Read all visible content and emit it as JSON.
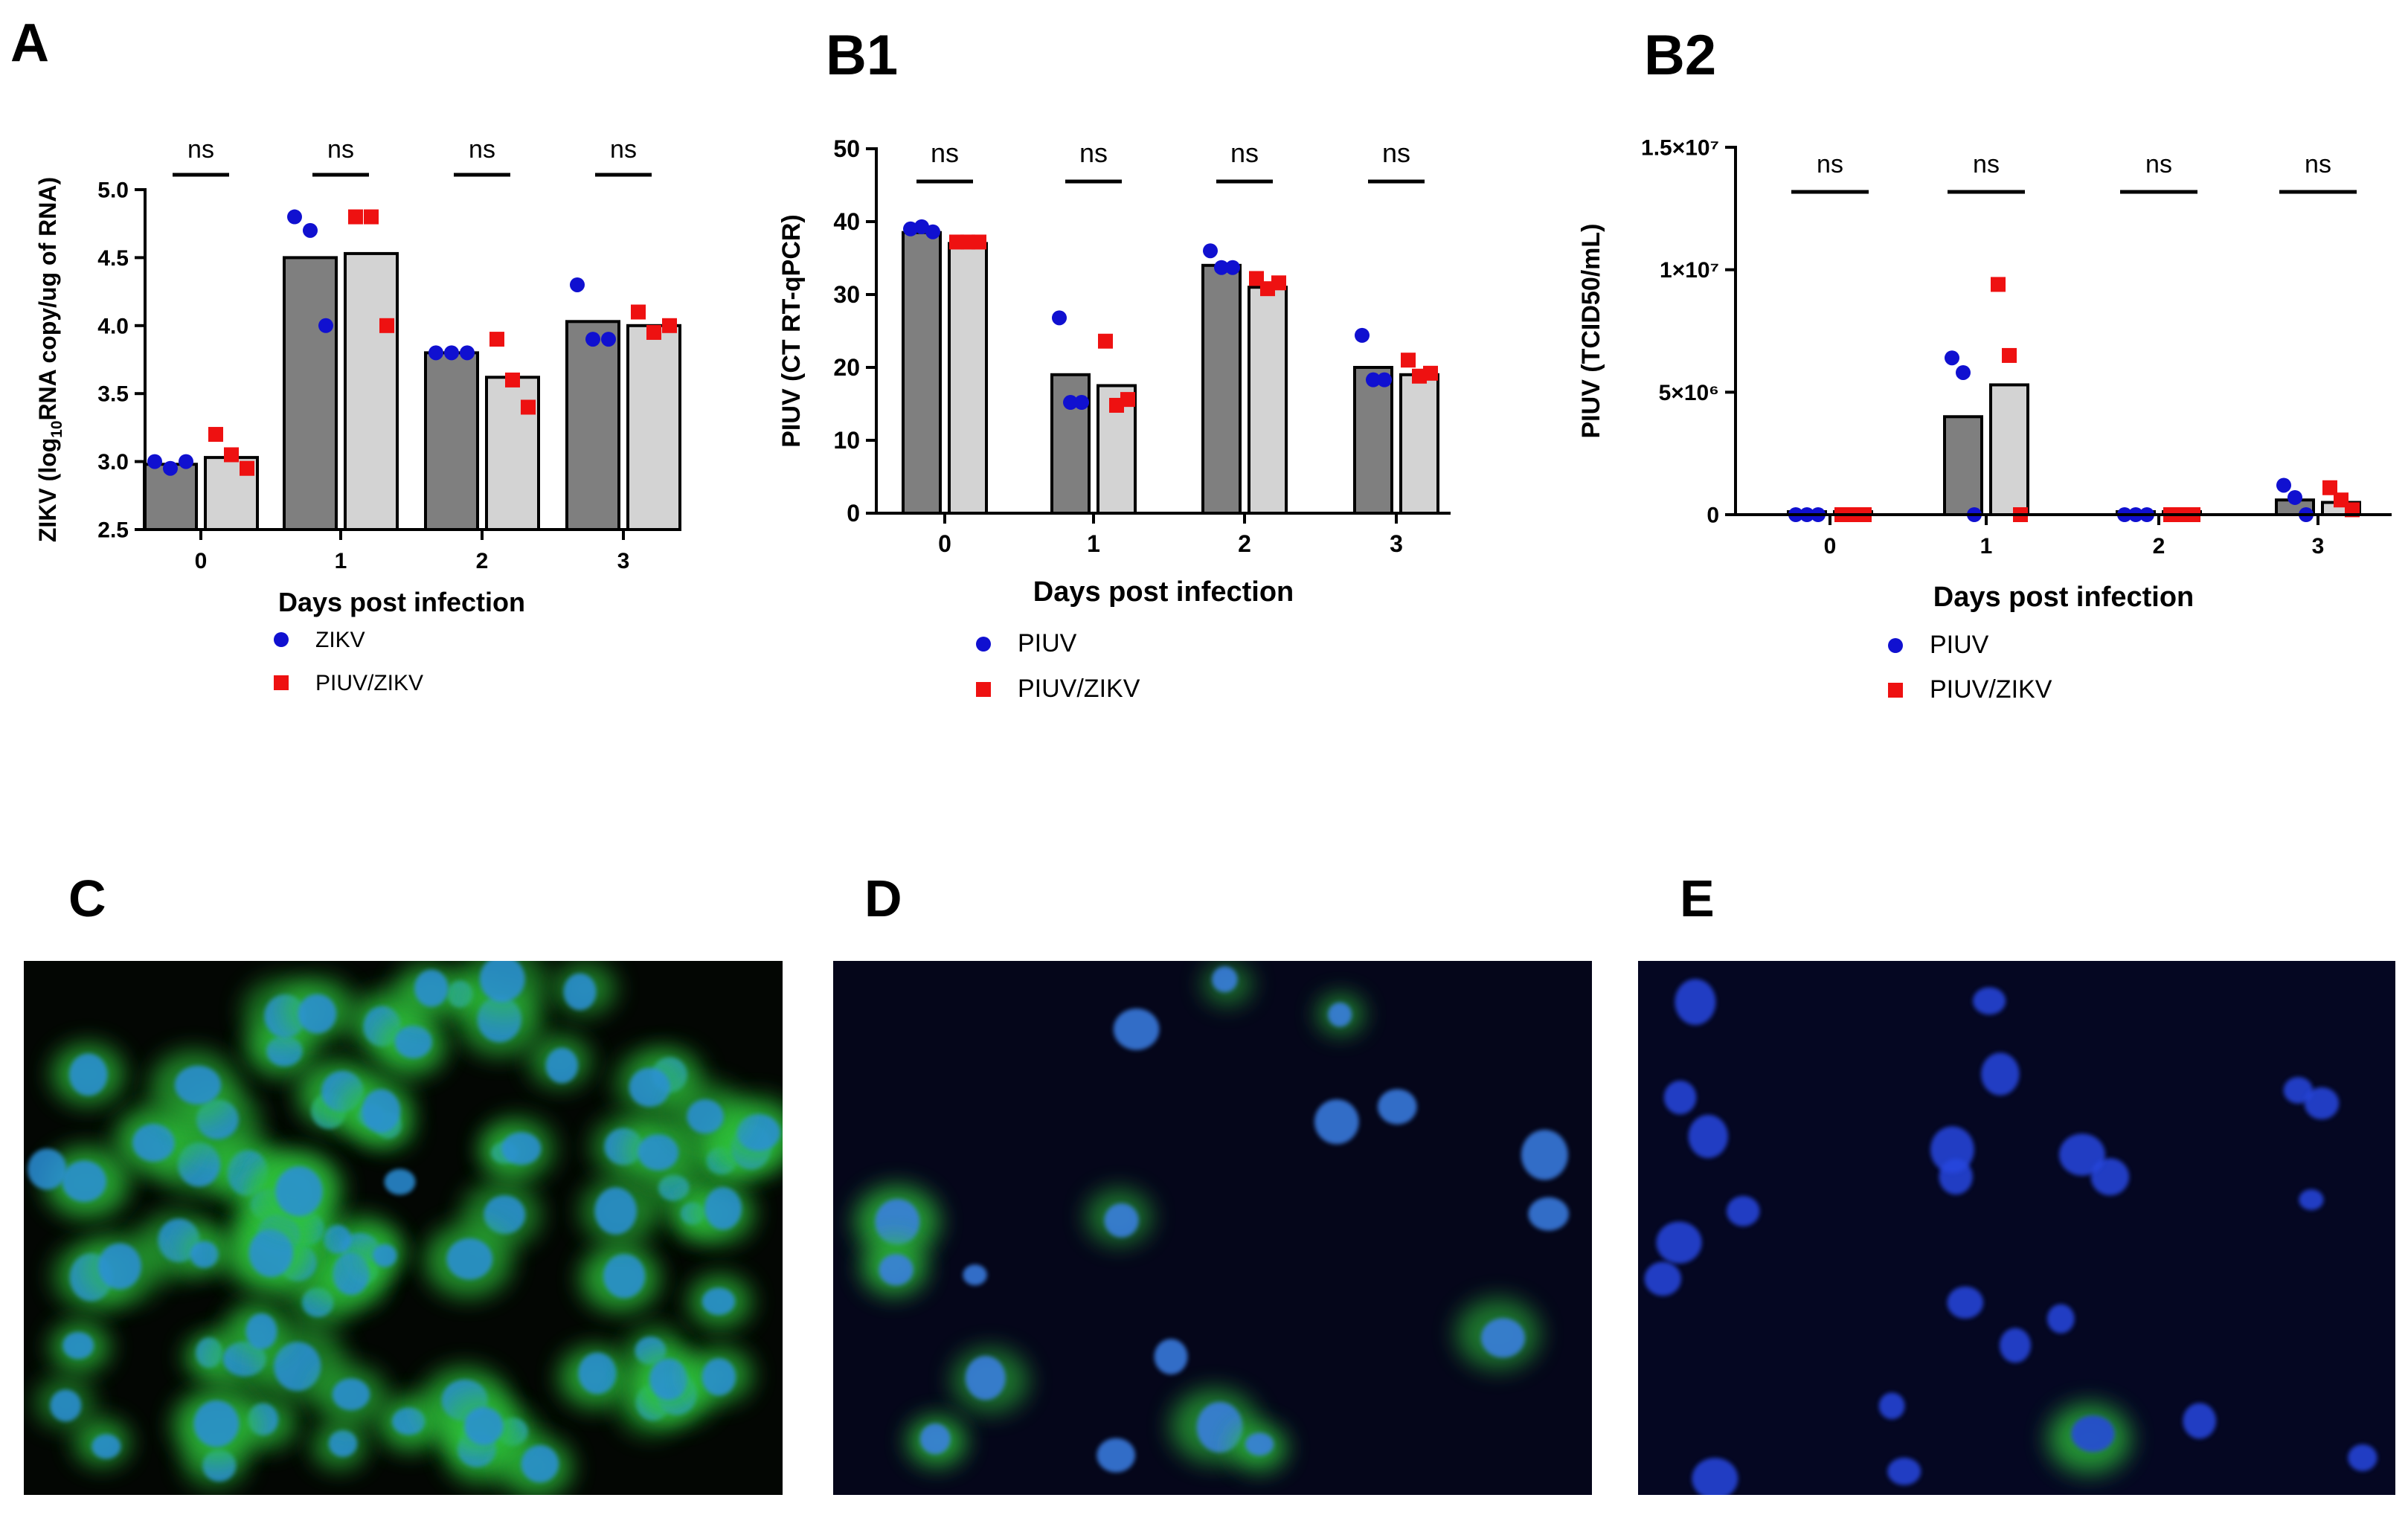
{
  "panels": {
    "a": "A",
    "b1": "B1",
    "b2": "B2",
    "c": "C",
    "d": "D",
    "e": "E"
  },
  "chart_data": [
    {
      "id": "A",
      "type": "bar",
      "ylabel_prefix": "ZIKV (log",
      "ylabel_sub": "10",
      "ylabel_suffix": "RNA copy/ug of RNA)",
      "xlabel": "Days post infection",
      "categories": [
        "0",
        "1",
        "2",
        "3"
      ],
      "ylim": [
        2.5,
        5.0
      ],
      "yticks": [
        "2.5",
        "3.0",
        "3.5",
        "4.0",
        "4.5",
        "5.0"
      ],
      "significance": [
        "ns",
        "ns",
        "ns",
        "ns"
      ],
      "series": [
        {
          "name": "ZIKV",
          "color": "#1010d0",
          "bar_color": "#7f7f7f",
          "marker": "circle",
          "values": [
            2.98,
            4.5,
            3.8,
            4.03
          ],
          "points": [
            [
              3.0,
              2.95,
              3.0
            ],
            [
              4.8,
              4.7,
              4.0
            ],
            [
              3.8,
              3.8,
              3.8
            ],
            [
              4.3,
              3.9,
              3.9
            ]
          ]
        },
        {
          "name": "PIUV/ZIKV",
          "color": "#ee1111",
          "bar_color": "#d3d3d3",
          "marker": "square",
          "values": [
            3.03,
            4.53,
            3.62,
            4.0
          ],
          "points": [
            [
              3.2,
              3.05,
              2.95
            ],
            [
              4.8,
              4.8,
              4.0
            ],
            [
              3.9,
              3.6,
              3.4
            ],
            [
              4.1,
              3.95,
              4.0
            ]
          ]
        }
      ]
    },
    {
      "id": "B1",
      "type": "bar",
      "ylabel": "PIUV (CT RT-qPCR)",
      "xlabel": "Days post infection",
      "categories": [
        "0",
        "1",
        "2",
        "3"
      ],
      "ylim": [
        0,
        50
      ],
      "yticks": [
        "0",
        "10",
        "20",
        "30",
        "40",
        "50"
      ],
      "significance": [
        "ns",
        "ns",
        "ns",
        "ns"
      ],
      "series": [
        {
          "name": "PIUV",
          "color": "#1010d0",
          "bar_color": "#7f7f7f",
          "marker": "circle",
          "values": [
            38.5,
            19.0,
            34.0,
            20.0
          ],
          "points": [
            [
              39.0,
              39.3,
              38.6
            ],
            [
              26.8,
              15.2,
              15.2
            ],
            [
              36.0,
              33.7,
              33.7
            ],
            [
              24.4,
              18.3,
              18.3
            ]
          ]
        },
        {
          "name": "PIUV/ZIKV",
          "color": "#ee1111",
          "bar_color": "#d3d3d3",
          "marker": "square",
          "values": [
            37.0,
            17.5,
            31.0,
            19.0
          ],
          "points": [
            [
              37.2,
              37.2,
              37.2
            ],
            [
              23.6,
              14.8,
              15.6
            ],
            [
              32.2,
              30.8,
              31.6
            ],
            [
              21.0,
              18.8,
              19.2
            ]
          ]
        }
      ]
    },
    {
      "id": "B2",
      "type": "bar",
      "ylabel": "PIUV (TCID50/mL)",
      "xlabel": "Days post infection",
      "categories": [
        "0",
        "1",
        "2",
        "3"
      ],
      "ylim": [
        0,
        15000000
      ],
      "yticks": [
        "0",
        "5×10⁶",
        "1×10⁷",
        "1.5×10⁷"
      ],
      "significance": [
        "ns",
        "ns",
        "ns",
        "ns"
      ],
      "series": [
        {
          "name": "PIUV",
          "color": "#1010d0",
          "bar_color": "#7f7f7f",
          "marker": "circle",
          "values": [
            0,
            4000000,
            0,
            600000
          ],
          "points": [
            [
              0,
              0,
              0
            ],
            [
              6400000,
              5800000,
              0
            ],
            [
              0,
              0,
              0
            ],
            [
              1200000,
              700000,
              0
            ]
          ]
        },
        {
          "name": "PIUV/ZIKV",
          "color": "#ee1111",
          "bar_color": "#d3d3d3",
          "marker": "square",
          "values": [
            0,
            5300000,
            0,
            500000
          ],
          "points": [
            [
              0,
              0,
              0
            ],
            [
              9400000,
              6500000,
              0
            ],
            [
              0,
              0,
              0
            ],
            [
              1100000,
              600000,
              200000
            ]
          ]
        }
      ]
    }
  ],
  "micrographs": [
    {
      "id": "C",
      "description_color": "green"
    },
    {
      "id": "D",
      "description_color": "blue"
    },
    {
      "id": "E",
      "description_color": "blue"
    }
  ]
}
